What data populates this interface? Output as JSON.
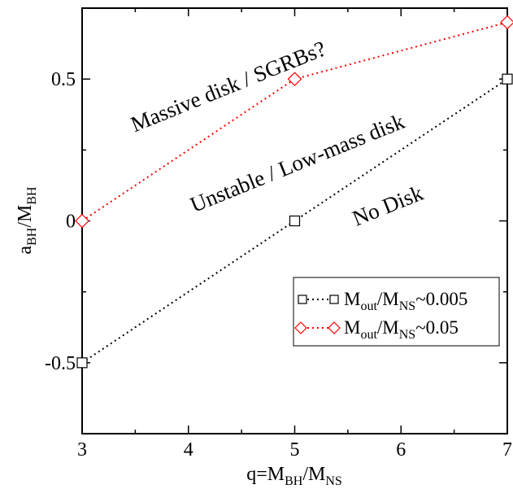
{
  "chart_data": {
    "type": "scatter",
    "xlim": [
      3,
      7
    ],
    "ylim": [
      -0.75,
      0.75
    ],
    "x_ticks": [
      {
        "value": 3,
        "label": "3"
      },
      {
        "value": 4,
        "label": "4"
      },
      {
        "value": 5,
        "label": "5"
      },
      {
        "value": 6,
        "label": "6"
      },
      {
        "value": 7,
        "label": "7"
      }
    ],
    "y_ticks": [
      {
        "value": -0.5,
        "label": "-0.5"
      },
      {
        "value": 0,
        "label": "0"
      },
      {
        "value": 0.5,
        "label": "0.5"
      }
    ],
    "xlabel": {
      "base": "q=M",
      "sub1": "BH",
      "mid": "/M",
      "sub2": "NS"
    },
    "ylabel": {
      "base": "a",
      "sub1": "BH",
      "mid": "/M",
      "sub2": "BH"
    },
    "grid": false,
    "legend_position": "lower-right",
    "series": [
      {
        "name": {
          "a": "M",
          "sub1": "out",
          "b": "/M",
          "sub2": "NS",
          "c": "~0.005"
        },
        "marker": "square",
        "line_style": "dotted",
        "color": "#000000",
        "x": [
          3,
          5,
          7
        ],
        "y": [
          -0.5,
          0.0,
          0.5
        ]
      },
      {
        "name": {
          "a": "M",
          "sub1": "out",
          "b": "/M",
          "sub2": "NS",
          "c": "~0.05"
        },
        "marker": "diamond",
        "line_style": "dotted",
        "color": "#ff0000",
        "x": [
          3,
          5,
          7
        ],
        "y": [
          0.0,
          0.5,
          0.7
        ]
      }
    ],
    "annotations": [
      {
        "text": "Massive disk / SGRBs?",
        "x": 4.4,
        "y": 0.45,
        "rotation": -22
      },
      {
        "text": "Unstable / Low-mass disk",
        "x": 5.05,
        "y": 0.18,
        "rotation": -22
      },
      {
        "text": "No Disk",
        "x": 5.9,
        "y": 0.03,
        "rotation": -22
      }
    ]
  }
}
